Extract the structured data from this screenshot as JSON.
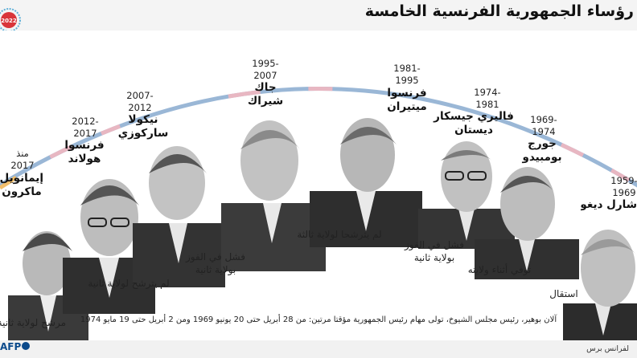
{
  "title": "رؤساء الجمهورية الفرنسية الخامسة",
  "badge_text": "2022",
  "presidents": [
    {
      "years": "منذ\n2017",
      "name": "إيمانويل\nماكرون",
      "note": "مرشح لولاية ثانية"
    },
    {
      "years": "2012-\n2017",
      "name": "فرنسوا\nهولاند",
      "note": "لم يترشح لولاية ثانية"
    },
    {
      "years": "2007-\n2012",
      "name": "نيكولا\nساركوزي",
      "note": "فشل في الفوز\nبولاية ثانية"
    },
    {
      "years": "1995-\n2007",
      "name": "جاك\nشيراك",
      "note": ""
    },
    {
      "years": "1981-\n1995",
      "name": "فرنسوا\nميتيران",
      "note": "لم يترشحا لولاية ثالثة"
    },
    {
      "years": "1974-\n1981",
      "name": "فاليري جيسكار\nديستان",
      "note": "فشل في الفوز\nبولاية ثانية"
    },
    {
      "years": "1969-\n1974",
      "name": "جورج\nبومبيدو",
      "note": "توفي أثناء ولايته"
    },
    {
      "years": "1959-\n1969",
      "name": "شارل ديغول",
      "note": "استقال"
    }
  ],
  "footnote": "آلان بوهير، رئيس مجلس الشيوخ، تولى مهام رئيس الجمهورية مؤقتا مرتين: من 28 أبريل حتى 20 يونيو 1969 ومن 2 أبريل حتى 19 مايو 1974",
  "credit": "لفرانس برس",
  "logo_text": "AFP",
  "colors": {
    "arc_blue": "#8fb0d2",
    "arc_pink": "#e8b7c2",
    "arc_orange": "#f2bf6c",
    "badge_red": "#d9353a",
    "badge_blue": "#5fb0d8"
  }
}
